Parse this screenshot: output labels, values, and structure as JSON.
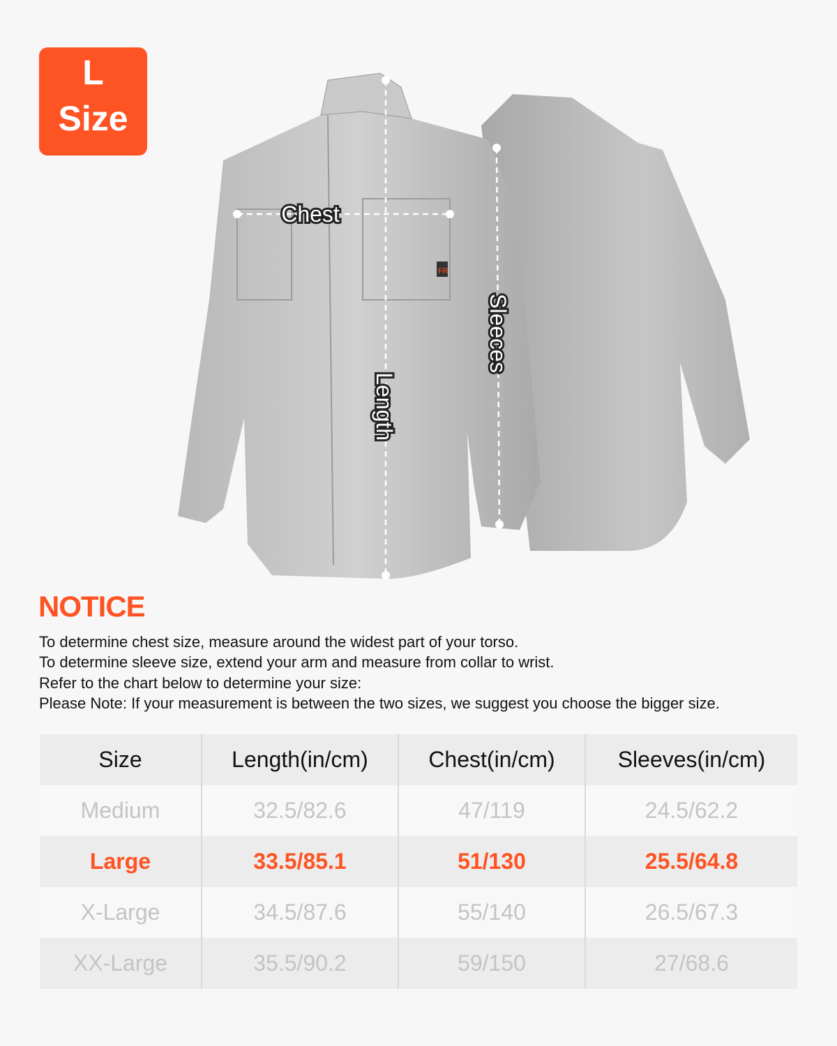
{
  "badge": {
    "size_letter": "L",
    "size_word": "Size"
  },
  "diagram": {
    "labels": {
      "chest": "Chest",
      "length": "Length",
      "sleeves": "Sleeces"
    },
    "shirt_tag": "FR"
  },
  "notice": {
    "title": "NOTICE",
    "lines": [
      "To determine chest size, measure around the widest part of your torso.",
      "To determine sleeve size, extend your arm and measure from collar to wrist.",
      "Refer to the chart below to determine your size:",
      "Please Note: If your measurement is between the two sizes, we suggest you choose the bigger size."
    ]
  },
  "table": {
    "headers": [
      "Size",
      "Length(in/cm)",
      "Chest(in/cm)",
      "Sleeves(in/cm)"
    ],
    "rows": [
      [
        "Medium",
        "32.5/82.6",
        "47/119",
        "24.5/62.2"
      ],
      [
        "Large",
        "33.5/85.1",
        "51/130",
        "25.5/64.8"
      ],
      [
        "X-Large",
        "34.5/87.6",
        "55/140",
        "26.5/67.3"
      ],
      [
        "XX-Large",
        "35.5/90.2",
        "59/150",
        "27/68.6"
      ]
    ],
    "highlighted_row": "Large"
  },
  "colors": {
    "accent": "#fe5323",
    "muted_text": "#c4c4c4",
    "background": "#f7f7f7"
  }
}
